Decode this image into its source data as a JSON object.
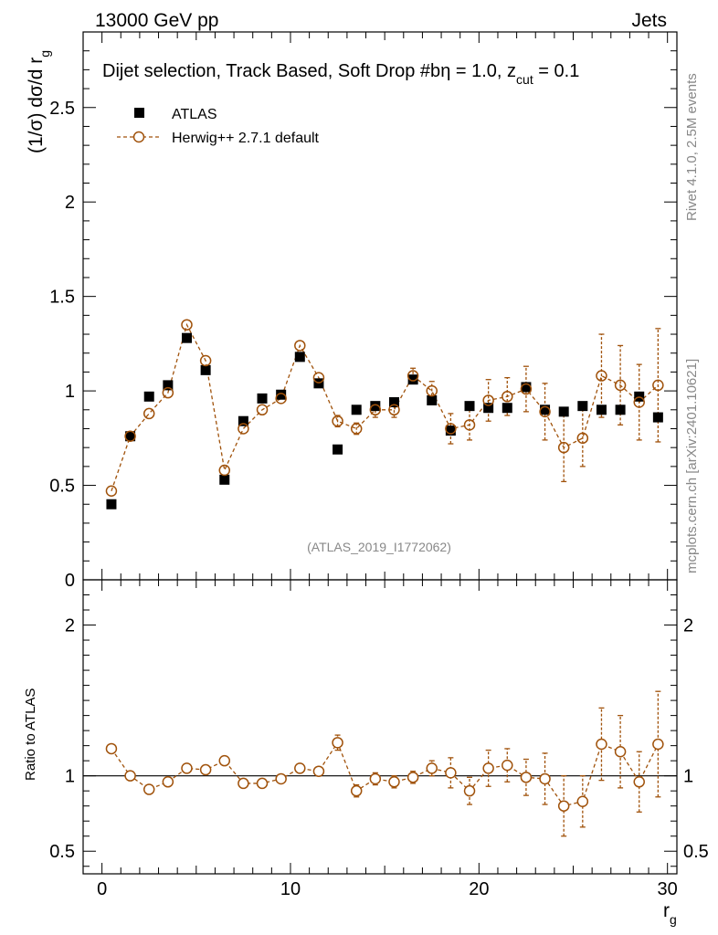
{
  "header": {
    "left": "13000 GeV pp",
    "right": "Jets"
  },
  "side_text": {
    "rivet": "Rivet 4.1.0,  2.5M events",
    "mcplots": "mcplots.cern.ch [arXiv:2401.10621]"
  },
  "chart_data": [
    {
      "type": "scatter",
      "panel": "main",
      "title_main": "Dijet selection, Track Based, Soft Drop #b",
      "title_eta": "η = 1.0, z",
      "title_sub": "cut",
      "title_end": " = 0.1",
      "ylabel_main": "(1/σ) dσ/d r",
      "ylabel_sub": "g",
      "xlim": [
        -1,
        30.5
      ],
      "ylim": [
        0,
        2.9
      ],
      "yticks": [
        0.5,
        1,
        1.5,
        2,
        2.5
      ],
      "ytick_labels": [
        "0.5",
        "1",
        "1.5",
        "2",
        "2.5"
      ],
      "y_zero_label": "0",
      "watermark": "(ATLAS_2019_I1772062)",
      "legend": [
        {
          "name": "ATLAS",
          "marker": "filled-square",
          "color": "#000000"
        },
        {
          "name": "Herwig++ 2.7.1 default",
          "marker": "open-circle",
          "color": "#a0520b",
          "linestyle": "dashed"
        }
      ],
      "x": [
        0.5,
        1.5,
        2.5,
        3.5,
        4.5,
        5.5,
        6.5,
        7.5,
        8.5,
        9.5,
        10.5,
        11.5,
        12.5,
        13.5,
        14.5,
        15.5,
        16.5,
        17.5,
        18.5,
        19.5,
        20.5,
        21.5,
        22.5,
        23.5,
        24.5,
        25.5,
        26.5,
        27.5,
        28.5,
        29.5
      ],
      "series": [
        {
          "name": "ATLAS",
          "values": [
            0.4,
            0.76,
            0.97,
            1.03,
            1.28,
            1.11,
            0.53,
            0.84,
            0.96,
            0.98,
            1.18,
            1.04,
            0.69,
            0.9,
            0.92,
            0.94,
            1.06,
            0.95,
            0.79,
            0.92,
            0.91,
            0.91,
            1.02,
            0.9,
            0.89,
            0.92,
            0.9,
            0.9,
            0.97,
            0.86
          ],
          "errors": [
            0,
            0,
            0,
            0,
            0,
            0,
            0,
            0,
            0,
            0,
            0,
            0,
            0,
            0,
            0,
            0,
            0,
            0,
            0,
            0,
            0,
            0,
            0,
            0,
            0,
            0,
            0,
            0,
            0,
            0
          ]
        },
        {
          "name": "Herwig++ 2.7.1 default",
          "values": [
            0.47,
            0.76,
            0.88,
            0.99,
            1.35,
            1.16,
            0.58,
            0.8,
            0.9,
            0.96,
            1.24,
            1.07,
            0.84,
            0.8,
            0.9,
            0.9,
            1.08,
            1.0,
            0.8,
            0.82,
            0.95,
            0.97,
            1.01,
            0.89,
            0.7,
            0.75,
            1.08,
            1.03,
            0.94,
            1.03
          ],
          "errors": [
            0.01,
            0.01,
            0.01,
            0.01,
            0.01,
            0.01,
            0.01,
            0.01,
            0.01,
            0.01,
            0.02,
            0.02,
            0.03,
            0.03,
            0.04,
            0.04,
            0.04,
            0.05,
            0.08,
            0.08,
            0.11,
            0.1,
            0.12,
            0.15,
            0.18,
            0.15,
            0.22,
            0.21,
            0.2,
            0.3
          ]
        }
      ]
    },
    {
      "type": "scatter",
      "panel": "ratio",
      "ylabel": "Ratio to ATLAS",
      "xlabel": "r",
      "xlabel_sub": "g",
      "xlim": [
        -1,
        30.5
      ],
      "ylim": [
        0.35,
        2.3
      ],
      "yticks": [
        0.5,
        1,
        2
      ],
      "ytick_labels": [
        "0.5",
        "1",
        "2"
      ],
      "xticks": [
        0,
        10,
        20,
        30
      ],
      "xtick_labels": [
        "0",
        "10",
        "20",
        "30"
      ],
      "reference_line": 1.0,
      "x": [
        0.5,
        1.5,
        2.5,
        3.5,
        4.5,
        5.5,
        6.5,
        7.5,
        8.5,
        9.5,
        10.5,
        11.5,
        12.5,
        13.5,
        14.5,
        15.5,
        16.5,
        17.5,
        18.5,
        19.5,
        20.5,
        21.5,
        22.5,
        23.5,
        24.5,
        25.5,
        26.5,
        27.5,
        28.5,
        29.5
      ],
      "series": [
        {
          "name": "Herwig++ 2.7.1 default",
          "values": [
            1.18,
            1.0,
            0.91,
            0.96,
            1.05,
            1.04,
            1.1,
            0.95,
            0.95,
            0.98,
            1.05,
            1.03,
            1.22,
            0.9,
            0.98,
            0.96,
            0.99,
            1.05,
            1.02,
            0.9,
            1.05,
            1.07,
            0.99,
            0.98,
            0.8,
            0.83,
            1.21,
            1.16,
            0.96,
            1.21
          ],
          "errors": [
            0.01,
            0.01,
            0.01,
            0.01,
            0.01,
            0.01,
            0.01,
            0.01,
            0.01,
            0.01,
            0.02,
            0.02,
            0.05,
            0.04,
            0.04,
            0.04,
            0.04,
            0.05,
            0.1,
            0.09,
            0.12,
            0.11,
            0.12,
            0.17,
            0.2,
            0.17,
            0.24,
            0.24,
            0.2,
            0.35
          ]
        }
      ]
    }
  ]
}
